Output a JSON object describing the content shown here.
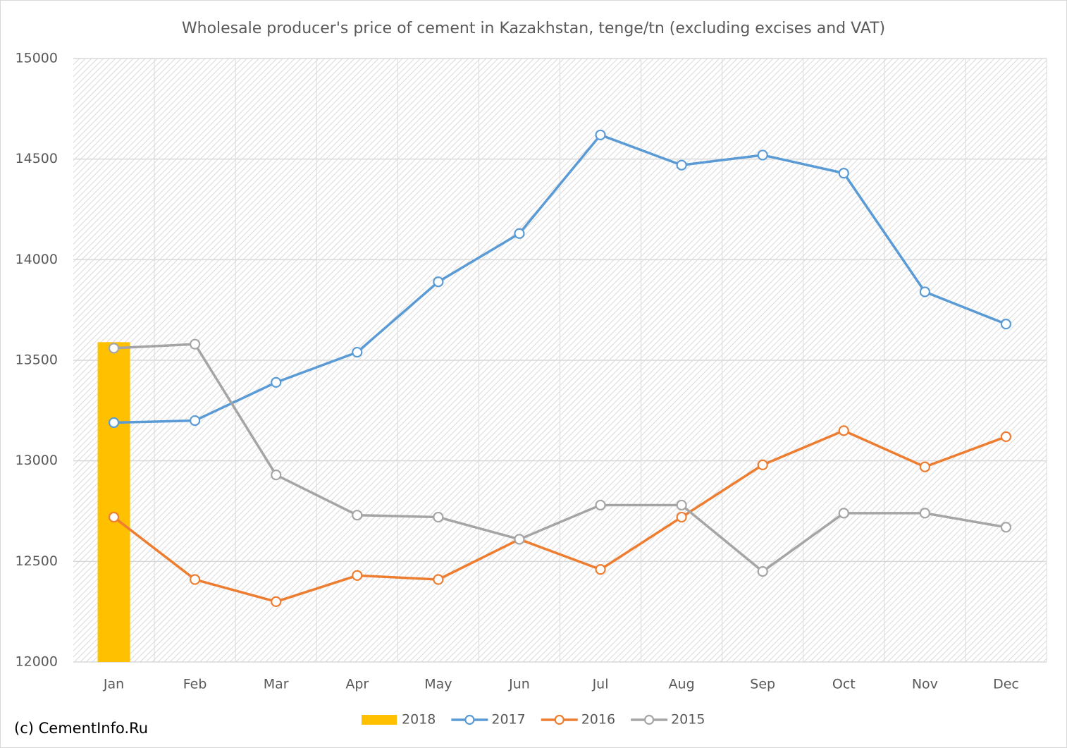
{
  "chart_data": {
    "type": "line",
    "title": "Wholesale producer's price of cement in Kazakhstan, tenge/tn (excluding excises and VAT)",
    "credit": "(c) CementInfo.Ru",
    "categories": [
      "Jan",
      "Feb",
      "Mar",
      "Apr",
      "May",
      "Jun",
      "Jul",
      "Aug",
      "Sep",
      "Oct",
      "Nov",
      "Dec"
    ],
    "series": [
      {
        "name": "2018",
        "type": "bar",
        "color": "#ffc000",
        "values": [
          13590,
          null,
          null,
          null,
          null,
          null,
          null,
          null,
          null,
          null,
          null,
          null
        ]
      },
      {
        "name": "2017",
        "type": "line",
        "color": "#5b9bd5",
        "values": [
          13190,
          13200,
          13390,
          13540,
          13890,
          14130,
          14620,
          14470,
          14520,
          14430,
          13840,
          13680
        ]
      },
      {
        "name": "2016",
        "type": "line",
        "color": "#ed7d31",
        "values": [
          12720,
          12410,
          12300,
          12430,
          12410,
          12610,
          12460,
          12720,
          12980,
          13150,
          12970,
          13120
        ]
      },
      {
        "name": "2015",
        "type": "line",
        "color": "#a5a5a5",
        "values": [
          13560,
          13580,
          12930,
          12730,
          12720,
          12610,
          12780,
          12780,
          12450,
          12740,
          12740,
          12670
        ]
      }
    ],
    "ylim": [
      12000,
      15000
    ],
    "yticks": [
      12000,
      12500,
      13000,
      13500,
      14000,
      14500,
      15000
    ],
    "grid": true,
    "legend": "bottom"
  }
}
